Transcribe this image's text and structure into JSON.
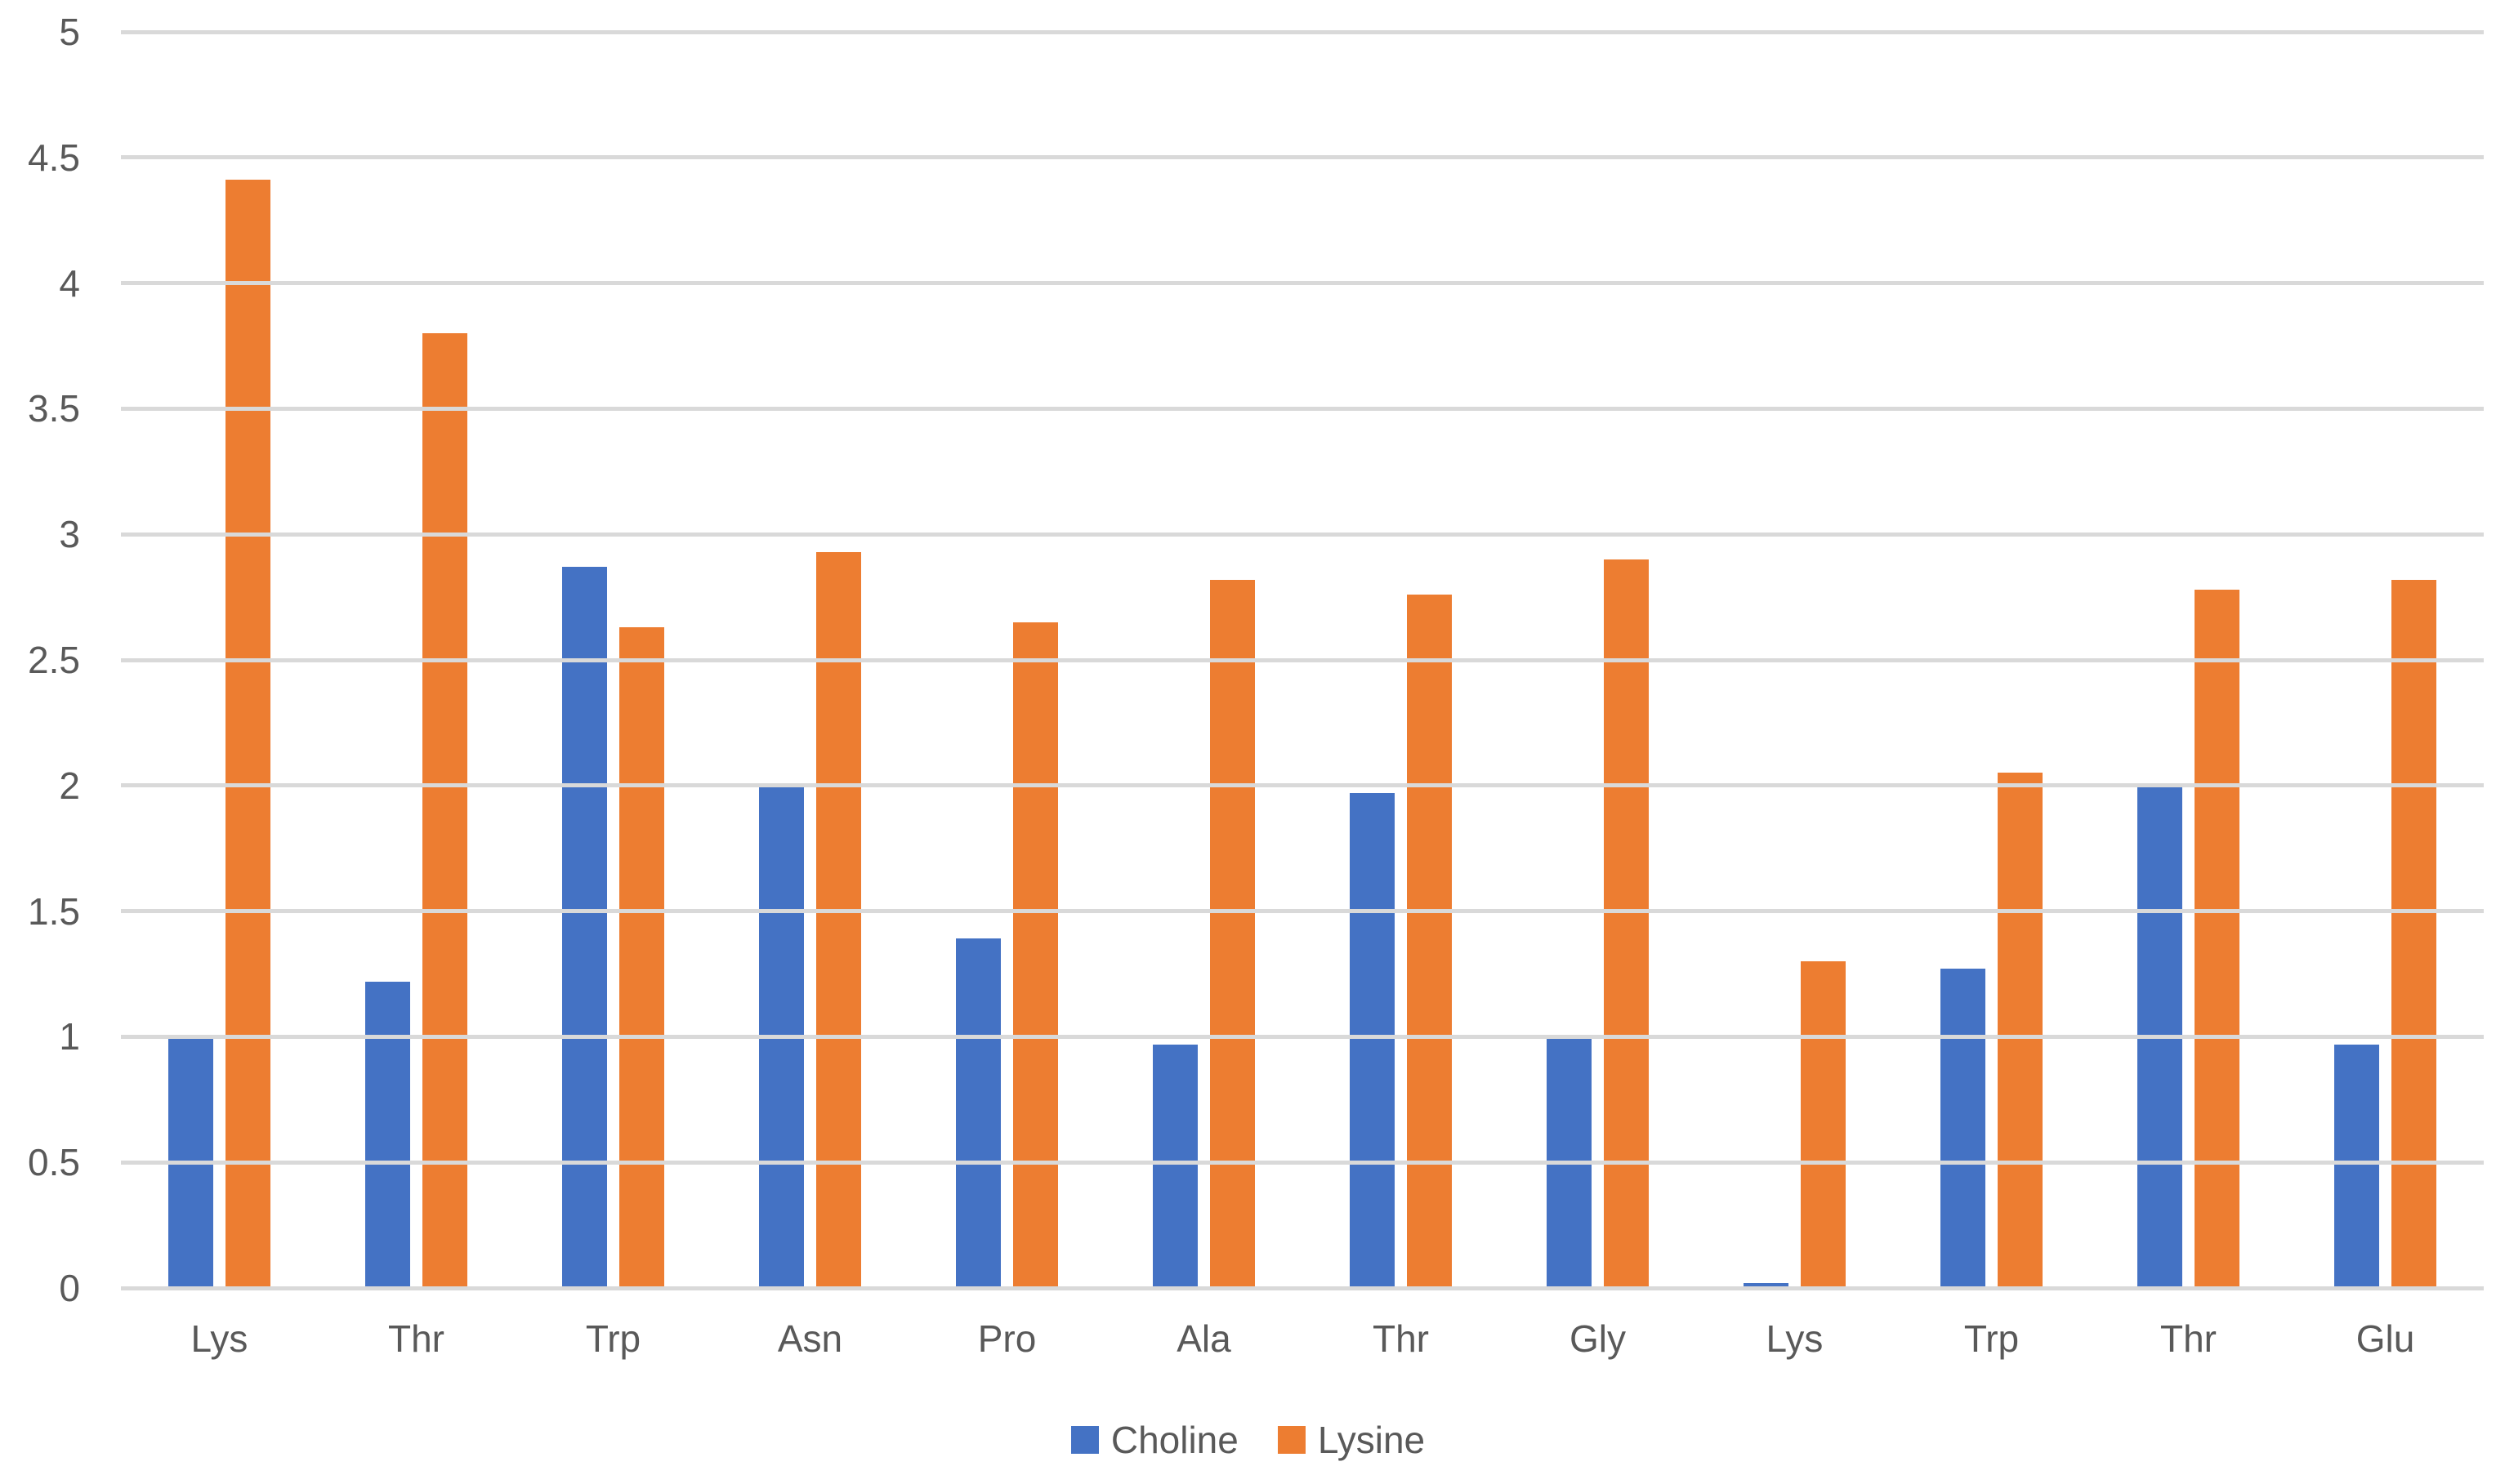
{
  "chart_data": {
    "type": "bar",
    "categories": [
      "Lys",
      "Thr",
      "Trp",
      "Asn",
      "Pro",
      "Ala",
      "Thr",
      "Gly",
      "Lys",
      "Trp",
      "Thr",
      "Glu"
    ],
    "series": [
      {
        "name": "Choline",
        "color": "#4472C4",
        "values": [
          1.0,
          1.22,
          2.87,
          2.01,
          1.39,
          0.97,
          1.97,
          1.0,
          0.02,
          1.27,
          2.01,
          0.97
        ]
      },
      {
        "name": "Lysine",
        "color": "#ED7D31",
        "values": [
          4.41,
          3.8,
          2.63,
          2.93,
          2.65,
          2.82,
          2.76,
          2.9,
          1.3,
          2.05,
          2.78,
          2.82
        ]
      }
    ],
    "title": "",
    "xlabel": "",
    "ylabel": "",
    "ylim": [
      0,
      5
    ],
    "yticks": [
      "0",
      "0.5",
      "1",
      "1.5",
      "2",
      "2.5",
      "3",
      "3.5",
      "4",
      "4.5",
      "5"
    ],
    "grid": true,
    "legend_position": "bottom"
  },
  "colors": {
    "background": "#FFFFFF",
    "gridline": "#D9D9D9",
    "axis_text": "#595959",
    "series_choline": "#4472C4",
    "series_lysine": "#ED7D31"
  }
}
